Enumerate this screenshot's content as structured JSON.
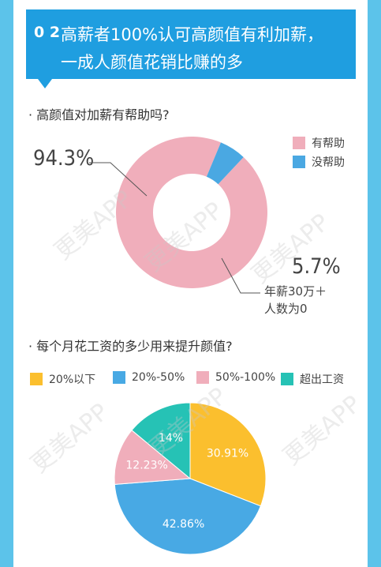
{
  "banner": {
    "number": "0 2",
    "title_line1": "高薪者100%认可高颜值有利加薪，",
    "title_line2": "一成人颜值花销比赚的多"
  },
  "chart_data": [
    {
      "type": "pie",
      "variant": "donut",
      "title": "· 高颜值对加薪有帮助吗?",
      "categories": [
        "有帮助",
        "没帮助"
      ],
      "values": [
        94.3,
        5.7
      ],
      "colors": [
        "#f0aebb",
        "#4aa8e2"
      ],
      "value_labels": [
        "94.3%",
        "5.7%"
      ],
      "annotation": [
        "年薪30万＋",
        "人数为0"
      ],
      "legend_position": "top-right"
    },
    {
      "type": "pie",
      "title": "· 每个月花工资的多少用来提升颜值?",
      "categories": [
        "20%以下",
        "20%-50%",
        "50%-100%",
        "超出工资"
      ],
      "values": [
        30.91,
        42.86,
        12.23,
        14
      ],
      "colors": [
        "#fbbf2e",
        "#48a9e4",
        "#f0aebb",
        "#26c2b5"
      ],
      "value_labels": [
        "30.91%",
        "42.86%",
        "12.23%",
        "14%"
      ],
      "legend_position": "top"
    }
  ],
  "watermark": "更美APP"
}
